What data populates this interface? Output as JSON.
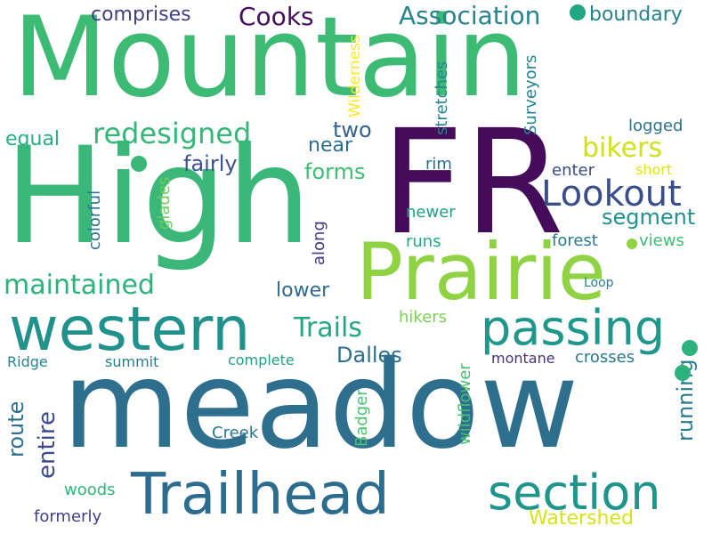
{
  "words": [
    {
      "text": "Mountain",
      "color": "#3dba74"
    },
    {
      "text": "High",
      "color": "#3bb879"
    },
    {
      "text": "FR",
      "color": "#440c5a"
    },
    {
      "text": "meadow",
      "color": "#2f6f8e"
    },
    {
      "text": "Prairie",
      "color": "#8fd244"
    },
    {
      "text": "western",
      "color": "#21918c"
    },
    {
      "text": "Trailhead",
      "color": "#2c6c8e"
    },
    {
      "text": "section",
      "color": "#1f958b"
    },
    {
      "text": "passing",
      "color": "#1f988b"
    },
    {
      "text": "Lookout",
      "color": "#3a4f8a"
    },
    {
      "text": "Cooks",
      "color": "#440f5e"
    },
    {
      "text": "Association",
      "color": "#25848e"
    },
    {
      "text": "boundary",
      "color": "#26828e"
    },
    {
      "text": "comprises",
      "color": "#433e85"
    },
    {
      "text": "redesigned",
      "color": "#35b779"
    },
    {
      "text": "bikers",
      "color": "#d0e11c"
    },
    {
      "text": "maintained",
      "color": "#2db27d"
    },
    {
      "text": "Trails",
      "color": "#22a785"
    },
    {
      "text": "Dalles",
      "color": "#2d708e"
    },
    {
      "text": "segment",
      "color": "#21918c"
    },
    {
      "text": "fairly",
      "color": "#3b528b"
    },
    {
      "text": "forms",
      "color": "#3dbc74"
    },
    {
      "text": "two",
      "color": "#33638d"
    },
    {
      "text": "near",
      "color": "#2e6e8e"
    },
    {
      "text": "lower",
      "color": "#31688e"
    },
    {
      "text": "equal",
      "color": "#29af7f"
    },
    {
      "text": "running",
      "color": "#287d8e"
    },
    {
      "text": "route",
      "color": "#2e6f8e"
    },
    {
      "text": "entire",
      "color": "#3e4a89"
    },
    {
      "text": "Watershed",
      "color": "#d8e219"
    },
    {
      "text": "woods",
      "color": "#2fb47c"
    },
    {
      "text": "formerly",
      "color": "#433e85"
    },
    {
      "text": "Creek",
      "color": "#2a778e"
    },
    {
      "text": "Wilderness",
      "color": "#fde725"
    },
    {
      "text": "stretches",
      "color": "#25858e"
    },
    {
      "text": "Surveyors",
      "color": "#26828e"
    },
    {
      "text": "logged",
      "color": "#2c728e"
    },
    {
      "text": "enter",
      "color": "#3e4989"
    },
    {
      "text": "short",
      "color": "#dde318"
    },
    {
      "text": "rim",
      "color": "#2c728e"
    },
    {
      "text": "colorful",
      "color": "#2b758e"
    },
    {
      "text": "glades",
      "color": "#6ccd5a"
    },
    {
      "text": "newer",
      "color": "#1f9e89"
    },
    {
      "text": "forest",
      "color": "#2a788e"
    },
    {
      "text": "views",
      "color": "#3dbc74"
    },
    {
      "text": "runs",
      "color": "#22a884"
    },
    {
      "text": "along",
      "color": "#443a83"
    },
    {
      "text": "Loop",
      "color": "#26818e"
    },
    {
      "text": "hikers",
      "color": "#7ad151"
    },
    {
      "text": "Ridge",
      "color": "#25858e"
    },
    {
      "text": "summit",
      "color": "#277f8e"
    },
    {
      "text": "complete",
      "color": "#1fa088"
    },
    {
      "text": "montane",
      "color": "#46327e"
    },
    {
      "text": "crosses",
      "color": "#2a788e"
    },
    {
      "text": "wildflower",
      "color": "#44bf70"
    },
    {
      "text": "Badger",
      "color": "#4ac16d"
    },
    {
      "text": "dot-1",
      "color": "#3bb879"
    },
    {
      "text": "dot-2",
      "color": "#22a785"
    },
    {
      "text": "dot-3",
      "color": "#2db27d"
    },
    {
      "text": "dot-4",
      "color": "#2db27d"
    },
    {
      "text": "dot-5",
      "color": "#8fd244"
    }
  ]
}
